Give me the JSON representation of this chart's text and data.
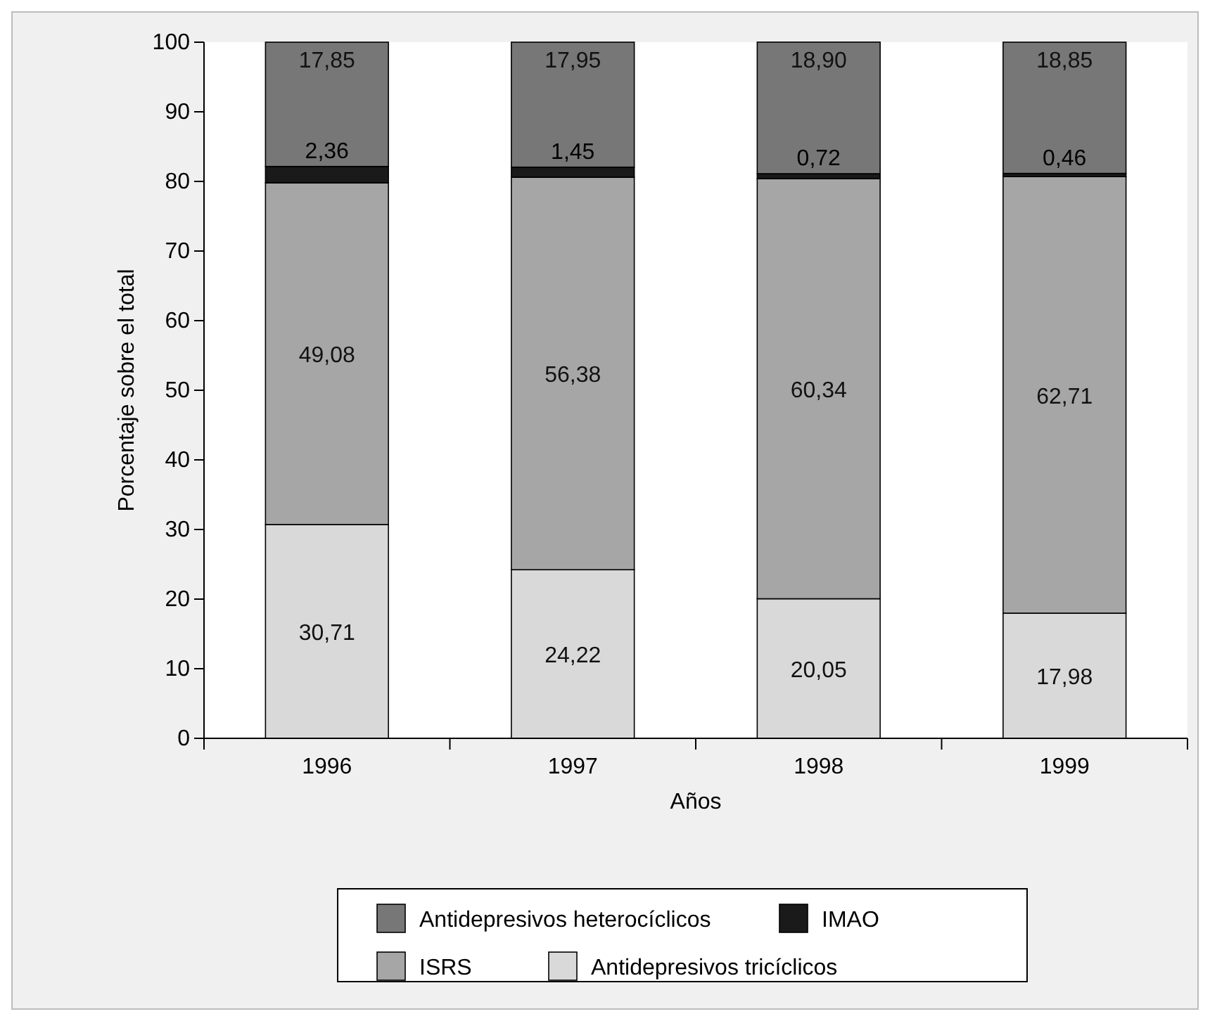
{
  "chart_data": {
    "type": "bar",
    "stacked": true,
    "xlabel": "Años",
    "ylabel": "Porcentaje sobre el total",
    "categories": [
      "1996",
      "1997",
      "1998",
      "1999"
    ],
    "ylim": [
      0,
      100
    ],
    "yticks": [
      0,
      10,
      20,
      30,
      40,
      50,
      60,
      70,
      80,
      90,
      100
    ],
    "grid": false,
    "legend": "bottom",
    "series": [
      {
        "name": "Antidepresivos tricíclicos",
        "color": "#d9d9d9",
        "values": [
          30.71,
          24.22,
          20.05,
          17.98
        ],
        "value_labels": [
          "30,71",
          "24,22",
          "20,05",
          "17,98"
        ]
      },
      {
        "name": "ISRS",
        "color": "#a6a6a6",
        "values": [
          49.08,
          56.38,
          60.34,
          62.71
        ],
        "value_labels": [
          "49,08",
          "56,38",
          "60,34",
          "62,71"
        ]
      },
      {
        "name": "IMAO",
        "color": "#1a1a1a",
        "values": [
          2.36,
          1.45,
          0.72,
          0.46
        ],
        "value_labels": [
          "2,36",
          "1,45",
          "0,72",
          "0,46"
        ]
      },
      {
        "name": "Antidepresivos heterocíclicos",
        "color": "#777777",
        "values": [
          17.85,
          17.95,
          18.9,
          18.85
        ],
        "value_labels": [
          "17,85",
          "17,95",
          "18,90",
          "18,85"
        ]
      }
    ]
  }
}
